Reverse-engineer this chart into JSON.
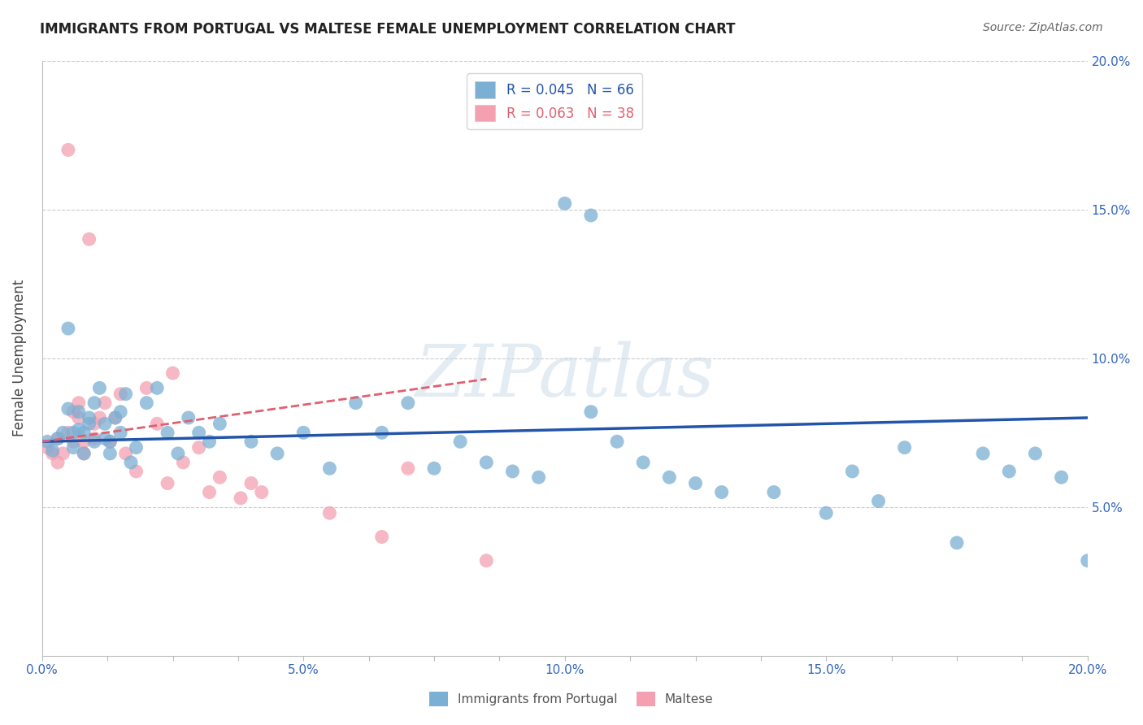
{
  "title": "IMMIGRANTS FROM PORTUGAL VS MALTESE FEMALE UNEMPLOYMENT CORRELATION CHART",
  "source": "Source: ZipAtlas.com",
  "ylabel": "Female Unemployment",
  "xlim": [
    0.0,
    0.2
  ],
  "ylim": [
    0.0,
    0.2
  ],
  "ytick_values": [
    0.0,
    0.05,
    0.1,
    0.15,
    0.2
  ],
  "ytick_labels": [
    "",
    "5.0%",
    "10.0%",
    "15.0%",
    "20.0%"
  ],
  "xtick_values": [
    0.0,
    0.0125,
    0.025,
    0.0375,
    0.05,
    0.0625,
    0.075,
    0.0875,
    0.1,
    0.1125,
    0.125,
    0.1375,
    0.15,
    0.1625,
    0.175,
    0.1875,
    0.2
  ],
  "xtick_labels": [
    "0.0%",
    "",
    "",
    "",
    "5.0%",
    "",
    "",
    "",
    "10.0%",
    "",
    "",
    "",
    "15.0%",
    "",
    "",
    "",
    "20.0%"
  ],
  "legend1_label": "R = 0.045   N = 66",
  "legend2_label": "R = 0.063   N = 38",
  "legend_bottom_label1": "Immigrants from Portugal",
  "legend_bottom_label2": "Maltese",
  "blue_color": "#7BAFD4",
  "pink_color": "#F4A0B0",
  "blue_line_color": "#2255AA",
  "pink_line_color": "#E06070",
  "watermark": "ZIPatlas",
  "blue_x": [
    0.001,
    0.002,
    0.003,
    0.004,
    0.005,
    0.005,
    0.006,
    0.006,
    0.007,
    0.007,
    0.008,
    0.008,
    0.009,
    0.009,
    0.01,
    0.01,
    0.011,
    0.012,
    0.012,
    0.013,
    0.013,
    0.014,
    0.015,
    0.015,
    0.016,
    0.017,
    0.018,
    0.02,
    0.022,
    0.024,
    0.026,
    0.028,
    0.03,
    0.032,
    0.034,
    0.04,
    0.045,
    0.05,
    0.055,
    0.06,
    0.065,
    0.07,
    0.075,
    0.08,
    0.085,
    0.09,
    0.095,
    0.1,
    0.105,
    0.105,
    0.11,
    0.115,
    0.12,
    0.125,
    0.13,
    0.14,
    0.15,
    0.155,
    0.16,
    0.165,
    0.175,
    0.18,
    0.185,
    0.19,
    0.195,
    0.2
  ],
  "blue_y": [
    0.072,
    0.069,
    0.073,
    0.075,
    0.11,
    0.083,
    0.075,
    0.07,
    0.076,
    0.082,
    0.075,
    0.068,
    0.08,
    0.078,
    0.085,
    0.072,
    0.09,
    0.073,
    0.078,
    0.072,
    0.068,
    0.08,
    0.075,
    0.082,
    0.088,
    0.065,
    0.07,
    0.085,
    0.09,
    0.075,
    0.068,
    0.08,
    0.075,
    0.072,
    0.078,
    0.072,
    0.068,
    0.075,
    0.063,
    0.085,
    0.075,
    0.085,
    0.063,
    0.072,
    0.065,
    0.062,
    0.06,
    0.152,
    0.148,
    0.082,
    0.072,
    0.065,
    0.06,
    0.058,
    0.055,
    0.055,
    0.048,
    0.062,
    0.052,
    0.07,
    0.038,
    0.068,
    0.062,
    0.068,
    0.06,
    0.032
  ],
  "pink_x": [
    0.001,
    0.002,
    0.003,
    0.003,
    0.004,
    0.005,
    0.005,
    0.006,
    0.006,
    0.007,
    0.007,
    0.008,
    0.008,
    0.009,
    0.01,
    0.01,
    0.011,
    0.012,
    0.013,
    0.014,
    0.015,
    0.016,
    0.018,
    0.02,
    0.022,
    0.024,
    0.025,
    0.027,
    0.03,
    0.032,
    0.034,
    0.038,
    0.04,
    0.042,
    0.055,
    0.065,
    0.07,
    0.085
  ],
  "pink_y": [
    0.07,
    0.068,
    0.073,
    0.065,
    0.068,
    0.075,
    0.17,
    0.072,
    0.082,
    0.08,
    0.085,
    0.068,
    0.072,
    0.14,
    0.078,
    0.073,
    0.08,
    0.085,
    0.072,
    0.08,
    0.088,
    0.068,
    0.062,
    0.09,
    0.078,
    0.058,
    0.095,
    0.065,
    0.07,
    0.055,
    0.06,
    0.053,
    0.058,
    0.055,
    0.048,
    0.04,
    0.063,
    0.032
  ],
  "blue_trend_x": [
    0.0,
    0.2
  ],
  "blue_trend_y": [
    0.072,
    0.08
  ],
  "pink_trend_x": [
    0.0,
    0.085
  ],
  "pink_trend_y": [
    0.072,
    0.093
  ]
}
